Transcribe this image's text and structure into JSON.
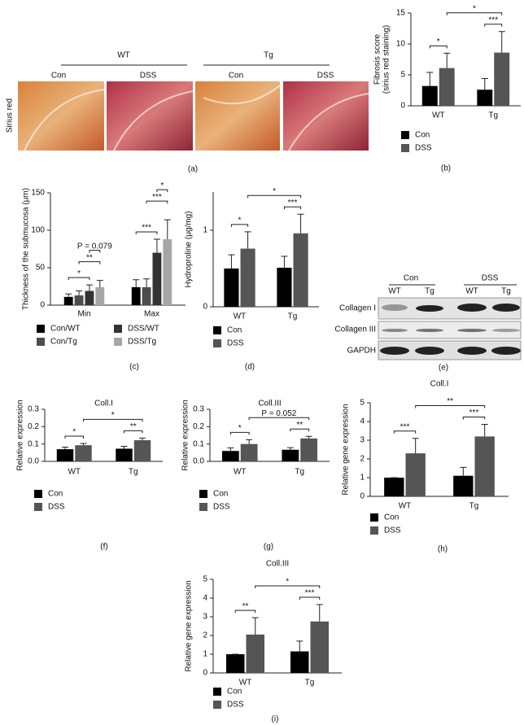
{
  "figure_a": {
    "groups": [
      "WT",
      "Tg"
    ],
    "conditions": [
      "Con",
      "DSS",
      "Con",
      "DSS"
    ],
    "stain": "Sirius red",
    "panel_label": "(a)"
  },
  "figure_e": {
    "groups": [
      "Con",
      "DSS"
    ],
    "genotypes": [
      "WT",
      "Tg",
      "WT",
      "Tg"
    ],
    "proteins": [
      "Collagen I",
      "Collagen III",
      "GAPDH"
    ],
    "panel_label": "(e)"
  },
  "chart_data": [
    {
      "type": "bar",
      "y_label": [
        "Fibrosis score",
        "(sirius red staining)"
      ],
      "categories": [
        "WT",
        "Tg"
      ],
      "series": [
        {
          "name": "Con",
          "color": "#000000",
          "values": [
            3.2,
            2.6
          ],
          "errors": [
            2.2,
            1.8
          ]
        },
        {
          "name": "DSS",
          "color": "#555555",
          "values": [
            6.1,
            8.6
          ],
          "errors": [
            2.4,
            3.4
          ]
        }
      ],
      "ylim": [
        0,
        15
      ],
      "yticks": [
        0,
        5,
        10,
        15
      ],
      "annotations": [
        "*",
        "***",
        "*"
      ],
      "panel_label": "(b)"
    },
    {
      "type": "bar",
      "y_label": [
        "Thickness of the submucosa (μm)"
      ],
      "categories": [
        "Min",
        "Max"
      ],
      "series": [
        {
          "name": "Con/WT",
          "color": "#000000",
          "values": [
            11,
            24
          ],
          "errors": [
            4,
            10
          ]
        },
        {
          "name": "Con/Tg",
          "color": "#4d4d4d",
          "values": [
            13,
            24
          ],
          "errors": [
            6,
            11
          ]
        },
        {
          "name": "DSS/WT",
          "color": "#333333",
          "values": [
            19,
            70
          ],
          "errors": [
            8,
            18
          ]
        },
        {
          "name": "DSS/Tg",
          "color": "#a6a6a6",
          "values": [
            24,
            88
          ],
          "errors": [
            9,
            26
          ]
        }
      ],
      "ylim": [
        0,
        150
      ],
      "yticks": [
        0,
        50,
        100,
        150
      ],
      "annotations": [
        "*",
        "**",
        "P = 0.079",
        "***",
        "***",
        "*"
      ],
      "panel_label": "(c)"
    },
    {
      "type": "bar",
      "y_label": [
        "Hydroproline (μg/mg)"
      ],
      "categories": [
        "WT",
        "Tg"
      ],
      "series": [
        {
          "name": "Con",
          "color": "#000000",
          "values": [
            0.5,
            0.51
          ],
          "errors": [
            0.18,
            0.15
          ]
        },
        {
          "name": "DSS",
          "color": "#555555",
          "values": [
            0.76,
            0.96
          ],
          "errors": [
            0.22,
            0.25
          ]
        }
      ],
      "ylim": [
        0,
        1.5
      ],
      "yticks": [
        0,
        1
      ],
      "annotations": [
        "*",
        "***",
        "*"
      ],
      "panel_label": "(d)"
    },
    {
      "type": "bar",
      "title": "Coll.I",
      "y_label": [
        "Relative expression"
      ],
      "categories": [
        "WT",
        "Tg"
      ],
      "series": [
        {
          "name": "Con",
          "color": "#000000",
          "values": [
            0.07,
            0.073
          ],
          "errors": [
            0.012,
            0.014
          ]
        },
        {
          "name": "DSS",
          "color": "#555555",
          "values": [
            0.093,
            0.122
          ],
          "errors": [
            0.01,
            0.012
          ]
        }
      ],
      "ylim": [
        0,
        0.3
      ],
      "yticks": [
        {
          "value": 0,
          "label": "0.0"
        },
        0.1,
        0.2,
        0.3
      ],
      "annotations": [
        "*",
        "**",
        "*"
      ],
      "panel_label": "(f)"
    },
    {
      "type": "bar",
      "title": "Coll.III",
      "y_label": [
        "Relative expression"
      ],
      "categories": [
        "WT",
        "Tg"
      ],
      "series": [
        {
          "name": "Con",
          "color": "#000000",
          "values": [
            0.06,
            0.067
          ],
          "errors": [
            0.018,
            0.012
          ]
        },
        {
          "name": "DSS",
          "color": "#555555",
          "values": [
            0.1,
            0.132
          ],
          "errors": [
            0.025,
            0.012
          ]
        }
      ],
      "ylim": [
        0,
        0.3
      ],
      "yticks": [
        {
          "value": 0,
          "label": "0.0"
        },
        0.1,
        0.2,
        0.3
      ],
      "annotations": [
        "*",
        "**",
        "P = 0.052"
      ],
      "panel_label": "(g)"
    },
    {
      "type": "bar",
      "title": "Coll.I",
      "y_label": [
        "Relative gene expression"
      ],
      "categories": [
        "WT",
        "Tg"
      ],
      "series": [
        {
          "name": "Con",
          "color": "#000000",
          "values": [
            1,
            1.1
          ],
          "errors": [
            0,
            0.45
          ]
        },
        {
          "name": "DSS",
          "color": "#555555",
          "values": [
            2.3,
            3.2
          ],
          "errors": [
            0.8,
            0.65
          ]
        }
      ],
      "ylim": [
        0,
        5
      ],
      "yticks": [
        0,
        1,
        2,
        3,
        4,
        5
      ],
      "annotations": [
        "***",
        "***",
        "**"
      ],
      "panel_label": "(h)"
    },
    {
      "type": "bar",
      "title": "Coll.III",
      "y_label": [
        "Relative gene expression"
      ],
      "categories": [
        "WT",
        "Tg"
      ],
      "series": [
        {
          "name": "Con",
          "color": "#000000",
          "values": [
            1,
            1.15
          ],
          "errors": [
            0,
            0.55
          ]
        },
        {
          "name": "DSS",
          "color": "#555555",
          "values": [
            2.05,
            2.75
          ],
          "errors": [
            0.9,
            0.9
          ]
        }
      ],
      "ylim": [
        0,
        5
      ],
      "yticks": [
        0,
        1,
        2,
        3,
        4,
        5
      ],
      "annotations": [
        "**",
        "***",
        "*"
      ],
      "panel_label": "(i)"
    }
  ]
}
